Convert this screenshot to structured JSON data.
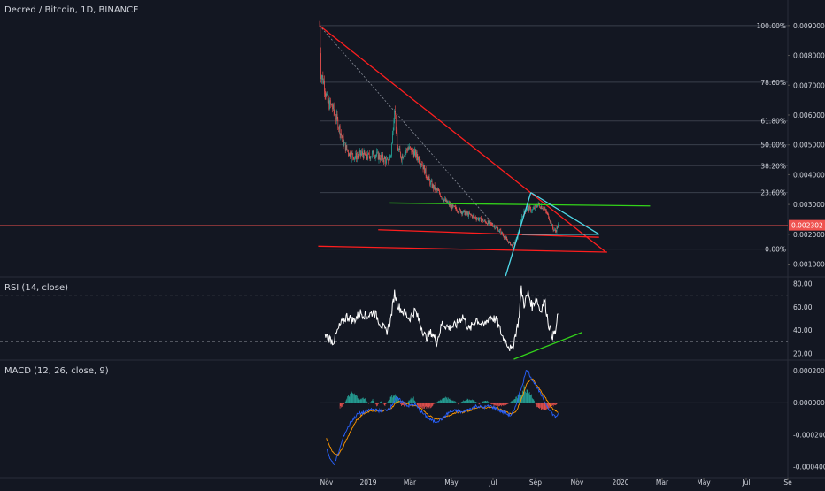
{
  "header": {
    "symbol_title": "Decred / Bitcoin, 1D, BINANCE",
    "rsi_title": "RSI (14, close)",
    "macd_title": "MACD (12, 26, close, 9)"
  },
  "colors": {
    "background": "#131722",
    "grid": "#262b38",
    "axis_text": "#d1d4dc",
    "candle_up": "#26a69a",
    "candle_down": "#ef5350",
    "trend_red": "#ff1e1e",
    "trend_green": "#33d41a",
    "trend_cyan": "#4fd8e8",
    "rsi_line": "#ffffff",
    "macd_line": "#2962ff",
    "signal_line": "#ff9800",
    "last_price_bg": "#ef5350"
  },
  "chart_data": [
    {
      "type": "candlestick",
      "pane": "price",
      "title": "Decred / Bitcoin, 1D, BINANCE",
      "x_ticks": [
        "Nov",
        "2019",
        "Mar",
        "May",
        "Jul",
        "Sep",
        "Nov",
        "2020",
        "Mar",
        "May",
        "Jul",
        "Se"
      ],
      "y_ticks": [
        "0.009000",
        "0.008000",
        "0.007000",
        "0.006000",
        "0.005000",
        "0.004000",
        "0.003000",
        "0.002000",
        "0.001000"
      ],
      "ylim": [
        0.0006,
        0.0095
      ],
      "last_price": "0.002302",
      "fib_levels": [
        {
          "label": "100.00%",
          "value": 0.009
        },
        {
          "label": "78.60%",
          "value": 0.0071
        },
        {
          "label": "61.80%",
          "value": 0.0058
        },
        {
          "label": "50.00%",
          "value": 0.005
        },
        {
          "label": "38.20%",
          "value": 0.0043
        },
        {
          "label": "23.60%",
          "value": 0.0034
        },
        {
          "label": "0.00%",
          "value": 0.0015
        }
      ],
      "close_path": [
        [
          0,
          0.009
        ],
        [
          2,
          0.0074
        ],
        [
          6,
          0.0071
        ],
        [
          12,
          0.0064
        ],
        [
          18,
          0.0063
        ],
        [
          26,
          0.0058
        ],
        [
          36,
          0.005
        ],
        [
          44,
          0.0047
        ],
        [
          52,
          0.0046
        ],
        [
          62,
          0.0047
        ],
        [
          70,
          0.0046
        ],
        [
          80,
          0.0047
        ],
        [
          88,
          0.0046
        ],
        [
          96,
          0.0045
        ],
        [
          100,
          0.0044
        ],
        [
          105,
          0.0047
        ],
        [
          110,
          0.0063
        ],
        [
          114,
          0.0049
        ],
        [
          120,
          0.0046
        ],
        [
          130,
          0.0049
        ],
        [
          140,
          0.0047
        ],
        [
          150,
          0.0044
        ],
        [
          158,
          0.0039
        ],
        [
          166,
          0.0036
        ],
        [
          175,
          0.0034
        ],
        [
          185,
          0.0031
        ],
        [
          195,
          0.0029
        ],
        [
          205,
          0.0028
        ],
        [
          215,
          0.0027
        ],
        [
          225,
          0.0026
        ],
        [
          235,
          0.0025
        ],
        [
          245,
          0.0024
        ],
        [
          255,
          0.0023
        ],
        [
          265,
          0.0021
        ],
        [
          275,
          0.0018
        ],
        [
          283,
          0.0016
        ],
        [
          290,
          0.0019
        ],
        [
          297,
          0.0026
        ],
        [
          304,
          0.0029
        ],
        [
          312,
          0.0028
        ],
        [
          320,
          0.003
        ],
        [
          328,
          0.0029
        ],
        [
          336,
          0.0026
        ],
        [
          342,
          0.0022
        ],
        [
          346,
          0.0021
        ],
        [
          350,
          0.0023
        ]
      ]
    },
    {
      "type": "line",
      "pane": "rsi",
      "title": "RSI (14, close)",
      "y_ticks": [
        "80.00",
        "60.00",
        "40.00",
        "20.00"
      ],
      "ylim": [
        15,
        85
      ],
      "bands": [
        70,
        30
      ],
      "values_path": [
        [
          0,
          32
        ],
        [
          10,
          35
        ],
        [
          20,
          30
        ],
        [
          30,
          44
        ],
        [
          40,
          52
        ],
        [
          50,
          48
        ],
        [
          60,
          55
        ],
        [
          70,
          52
        ],
        [
          80,
          56
        ],
        [
          90,
          45
        ],
        [
          98,
          38
        ],
        [
          104,
          48
        ],
        [
          110,
          72
        ],
        [
          116,
          60
        ],
        [
          124,
          55
        ],
        [
          132,
          50
        ],
        [
          140,
          57
        ],
        [
          148,
          45
        ],
        [
          156,
          33
        ],
        [
          164,
          38
        ],
        [
          172,
          30
        ],
        [
          180,
          46
        ],
        [
          190,
          42
        ],
        [
          200,
          44
        ],
        [
          210,
          52
        ],
        [
          220,
          40
        ],
        [
          230,
          50
        ],
        [
          240,
          43
        ],
        [
          250,
          52
        ],
        [
          260,
          48
        ],
        [
          268,
          35
        ],
        [
          276,
          28
        ],
        [
          282,
          22
        ],
        [
          288,
          38
        ],
        [
          292,
          48
        ],
        [
          296,
          75
        ],
        [
          300,
          62
        ],
        [
          306,
          72
        ],
        [
          312,
          60
        ],
        [
          318,
          68
        ],
        [
          324,
          56
        ],
        [
          330,
          66
        ],
        [
          336,
          45
        ],
        [
          342,
          35
        ],
        [
          346,
          38
        ],
        [
          350,
          54
        ]
      ]
    },
    {
      "type": "bar+line",
      "pane": "macd",
      "title": "MACD (12, 26, close, 9)",
      "y_ticks": [
        "0.000200",
        "0.000000",
        "-0.000200",
        "-0.000400"
      ],
      "ylim": [
        -0.00044,
        0.00026
      ],
      "macd_path": [
        [
          10,
          -0.00028
        ],
        [
          16,
          -0.00036
        ],
        [
          22,
          -0.00038
        ],
        [
          28,
          -0.00031
        ],
        [
          36,
          -0.0002
        ],
        [
          46,
          -0.00012
        ],
        [
          56,
          -7e-05
        ],
        [
          66,
          -6e-05
        ],
        [
          76,
          -4e-05
        ],
        [
          86,
          -5e-05
        ],
        [
          96,
          -5e-05
        ],
        [
          104,
          -3e-05
        ],
        [
          112,
          3e-05
        ],
        [
          120,
          1e-05
        ],
        [
          130,
          -2e-05
        ],
        [
          140,
          -1e-05
        ],
        [
          150,
          -6e-05
        ],
        [
          160,
          -0.0001
        ],
        [
          170,
          -0.00012
        ],
        [
          180,
          -0.0001
        ],
        [
          190,
          -6e-05
        ],
        [
          200,
          -5e-05
        ],
        [
          210,
          -6e-05
        ],
        [
          220,
          -4e-05
        ],
        [
          230,
          -2e-05
        ],
        [
          240,
          -3e-05
        ],
        [
          250,
          -2e-05
        ],
        [
          260,
          -4e-05
        ],
        [
          270,
          -6e-05
        ],
        [
          280,
          -8e-05
        ],
        [
          286,
          -5e-05
        ],
        [
          292,
          4e-05
        ],
        [
          298,
          0.00012
        ],
        [
          304,
          0.00021
        ],
        [
          310,
          0.00016
        ],
        [
          318,
          0.0001
        ],
        [
          326,
          4e-05
        ],
        [
          334,
          -2e-05
        ],
        [
          340,
          -6e-05
        ],
        [
          346,
          -9e-05
        ],
        [
          350,
          -7e-05
        ]
      ],
      "signal_path": [
        [
          10,
          -0.00022
        ],
        [
          18,
          -0.0003
        ],
        [
          26,
          -0.00033
        ],
        [
          34,
          -0.00028
        ],
        [
          44,
          -0.00019
        ],
        [
          54,
          -0.00011
        ],
        [
          64,
          -7e-05
        ],
        [
          74,
          -5e-05
        ],
        [
          84,
          -5e-05
        ],
        [
          94,
          -5e-05
        ],
        [
          104,
          -4e-05
        ],
        [
          112,
          0.0
        ],
        [
          120,
          1e-05
        ],
        [
          130,
          -1e-05
        ],
        [
          140,
          -2e-05
        ],
        [
          150,
          -4e-05
        ],
        [
          160,
          -8e-05
        ],
        [
          170,
          -0.0001
        ],
        [
          180,
          -0.0001
        ],
        [
          190,
          -8e-05
        ],
        [
          200,
          -6e-05
        ],
        [
          210,
          -6e-05
        ],
        [
          220,
          -5e-05
        ],
        [
          230,
          -3e-05
        ],
        [
          240,
          -3e-05
        ],
        [
          250,
          -3e-05
        ],
        [
          260,
          -3e-05
        ],
        [
          270,
          -5e-05
        ],
        [
          280,
          -7e-05
        ],
        [
          288,
          -6e-05
        ],
        [
          296,
          2e-05
        ],
        [
          304,
          0.00012
        ],
        [
          312,
          0.00015
        ],
        [
          320,
          0.0001
        ],
        [
          328,
          5e-05
        ],
        [
          336,
          0.0
        ],
        [
          342,
          -4e-05
        ],
        [
          350,
          -6e-05
        ]
      ],
      "histogram": [
        [
          30,
          -3e-05
        ],
        [
          36,
          -1e-05
        ],
        [
          42,
          4e-05
        ],
        [
          48,
          6e-05
        ],
        [
          54,
          4e-05
        ],
        [
          60,
          2e-05
        ],
        [
          66,
          3e-05
        ],
        [
          72,
          -1e-05
        ],
        [
          78,
          2e-05
        ],
        [
          84,
          -2e-05
        ],
        [
          90,
          1e-05
        ],
        [
          96,
          -2e-05
        ],
        [
          102,
          2e-05
        ],
        [
          108,
          5e-05
        ],
        [
          114,
          4e-05
        ],
        [
          120,
          -2e-05
        ],
        [
          126,
          -2e-05
        ],
        [
          132,
          2e-05
        ],
        [
          138,
          3e-05
        ],
        [
          144,
          -2e-05
        ],
        [
          150,
          -3e-05
        ],
        [
          156,
          -3e-05
        ],
        [
          162,
          -3e-05
        ],
        [
          168,
          -1e-05
        ],
        [
          174,
          1e-05
        ],
        [
          180,
          2e-05
        ],
        [
          186,
          3e-05
        ],
        [
          192,
          2e-05
        ],
        [
          198,
          1e-05
        ],
        [
          204,
          -1e-05
        ],
        [
          210,
          1e-05
        ],
        [
          216,
          2e-05
        ],
        [
          222,
          2e-05
        ],
        [
          228,
          1e-05
        ],
        [
          234,
          -1e-05
        ],
        [
          240,
          1e-05
        ],
        [
          246,
          1e-05
        ],
        [
          252,
          -1e-05
        ],
        [
          258,
          -2e-05
        ],
        [
          264,
          -2e-05
        ],
        [
          270,
          -2e-05
        ],
        [
          276,
          -1e-05
        ],
        [
          282,
          1e-05
        ],
        [
          288,
          3e-05
        ],
        [
          294,
          5e-05
        ],
        [
          300,
          9e-05
        ],
        [
          306,
          8e-05
        ],
        [
          312,
          4e-05
        ],
        [
          318,
          -2e-05
        ],
        [
          324,
          -4e-05
        ],
        [
          330,
          -4e-05
        ],
        [
          336,
          -3e-05
        ],
        [
          342,
          -2e-05
        ],
        [
          348,
          -1e-05
        ]
      ]
    }
  ],
  "drawings": {
    "price": [
      {
        "name": "red-descending-trendline",
        "color": "trend_red",
        "from": [
          0,
          0.009
        ],
        "to": [
          420,
          0.0014
        ]
      },
      {
        "name": "red-lower-trendline",
        "color": "trend_red",
        "from": [
          -2,
          0.0016
        ],
        "to": [
          422,
          0.0014
        ]
      },
      {
        "name": "red-middle-trendline",
        "color": "trend_red",
        "from": [
          86,
          0.00215
        ],
        "to": [
          410,
          0.0019
        ]
      },
      {
        "name": "green-horizontal-trendline",
        "color": "trend_green",
        "from": [
          103,
          0.00305
        ],
        "to": [
          485,
          0.00295
        ]
      },
      {
        "name": "gray-dotted-trendline",
        "color": "grid_dotted",
        "from": [
          0,
          0.009
        ],
        "to": [
          283,
          0.0016
        ]
      },
      {
        "name": "cyan-triangle-upper",
        "color": "trend_cyan",
        "from": [
          310,
          0.0034
        ],
        "to": [
          410,
          0.002
        ]
      },
      {
        "name": "cyan-triangle-lower",
        "color": "trend_cyan",
        "from": [
          297,
          0.002
        ],
        "to": [
          410,
          0.002
        ]
      },
      {
        "name": "cyan-triangle-left",
        "color": "trend_cyan",
        "from": [
          273,
          0.0006
        ],
        "to": [
          310,
          0.0034
        ]
      }
    ],
    "rsi": [
      {
        "name": "green-rsi-support-line",
        "color": "trend_green",
        "from": [
          285,
          15
        ],
        "to": [
          385,
          38
        ]
      }
    ]
  }
}
